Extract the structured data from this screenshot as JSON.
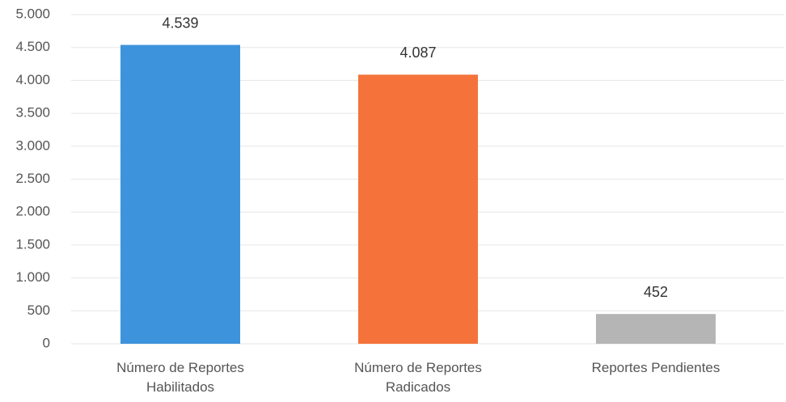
{
  "chart_data": {
    "type": "bar",
    "categories": [
      "Número de Reportes Habilitados",
      "Número de Reportes Radicados",
      "Reportes Pendientes"
    ],
    "values": [
      4539,
      4087,
      452
    ],
    "value_labels": [
      "4.539",
      "4.087",
      "452"
    ],
    "colors": [
      "#3d93dc",
      "#f5733a",
      "#b5b5b5"
    ],
    "ylim": [
      0,
      5000
    ],
    "yticks": [
      0,
      500,
      {
        "value": 1000,
        "label": "1.000"
      },
      {
        "value": 1500,
        "label": "1.500"
      },
      {
        "value": 2000,
        "label": "2.000"
      },
      {
        "value": 2500,
        "label": "2.500"
      },
      {
        "value": 3000,
        "label": "3.000"
      },
      {
        "value": 3500,
        "label": "3.500"
      },
      {
        "value": 4000,
        "label": "4.000"
      },
      {
        "value": 4500,
        "label": "4.500"
      },
      {
        "value": 5000,
        "label": "5.000"
      }
    ],
    "grid": true
  }
}
